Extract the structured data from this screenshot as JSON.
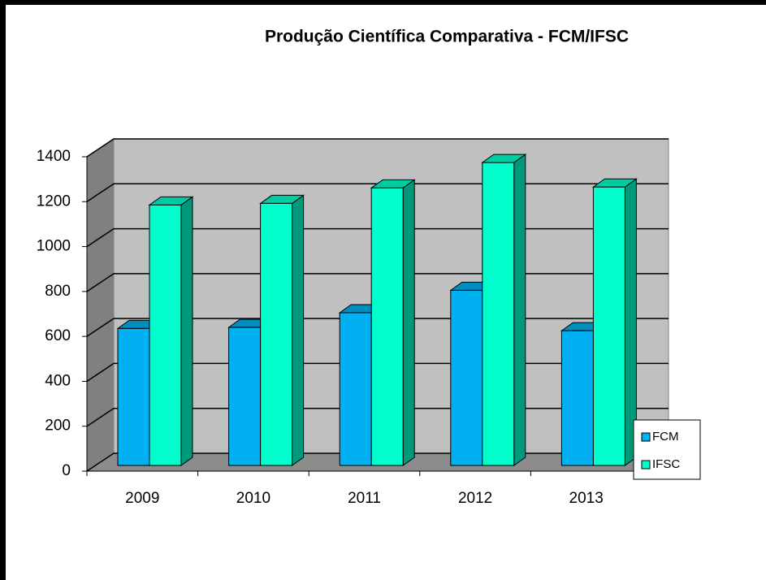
{
  "chart_data": {
    "type": "bar",
    "title": "Produção Científica Comparativa - FCM/IFSC",
    "categories": [
      "2009",
      "2010",
      "2011",
      "2012",
      "2013"
    ],
    "series": [
      {
        "name": "FCM",
        "color": "#00b0f0",
        "values": [
          610,
          615,
          680,
          780,
          600
        ]
      },
      {
        "name": "IFSC",
        "color": "#00ffcc",
        "values": [
          1160,
          1167,
          1236,
          1349,
          1240
        ]
      }
    ],
    "ylim": [
      0,
      1400
    ],
    "yticks": [
      0,
      200,
      400,
      600,
      800,
      1000,
      1200,
      1400
    ],
    "grid": true,
    "legend": "right"
  }
}
